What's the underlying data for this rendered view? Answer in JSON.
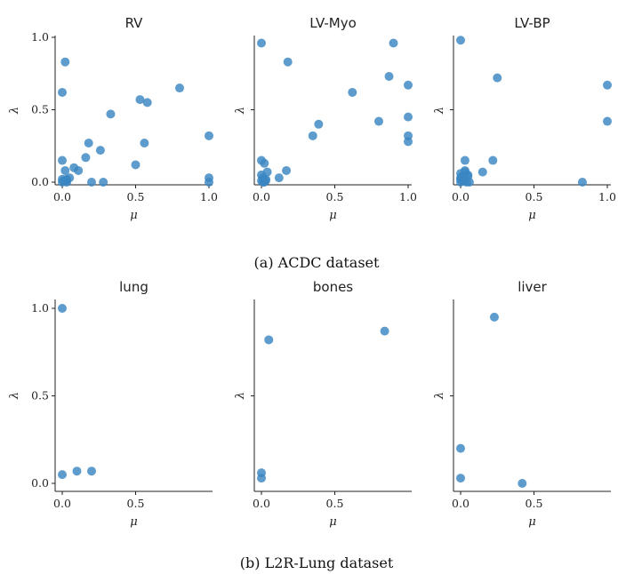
{
  "figure": {
    "captions": [
      "(a) ACDC dataset",
      "(b) L2R-Lung dataset"
    ]
  },
  "chart_data": [
    {
      "type": "scatter",
      "title": "RV",
      "xlabel": "μ",
      "ylabel": "λ",
      "xlim": [
        0,
        1
      ],
      "ylim": [
        0,
        1
      ],
      "xticks": [
        0,
        0.5,
        1
      ],
      "xtick_labels": [
        "0.0",
        "0.5",
        "1.0"
      ],
      "yticks": [
        0,
        0.5,
        1
      ],
      "ytick_labels": [
        "0.0",
        "0.5",
        "1.0"
      ],
      "grid": false,
      "x": [
        0.0,
        0.0,
        0.02,
        0.02,
        0.05,
        0.03,
        0.0,
        0.01,
        0.03,
        0.08,
        0.11,
        0.16,
        0.18,
        0.2,
        0.26,
        0.28,
        0.33,
        0.5,
        0.53,
        0.56,
        0.58,
        0.8,
        1.0,
        1.0,
        1.0,
        0.03,
        0.0
      ],
      "y": [
        0.62,
        0.15,
        0.83,
        0.08,
        0.03,
        0.0,
        0.02,
        0.01,
        0.02,
        0.1,
        0.08,
        0.17,
        0.27,
        0.0,
        0.22,
        0.0,
        0.47,
        0.12,
        0.57,
        0.27,
        0.55,
        0.65,
        0.32,
        0.03,
        0.0,
        0.01,
        0.0
      ]
    },
    {
      "type": "scatter",
      "title": "LV-Myo",
      "xlabel": "μ",
      "ylabel": "λ",
      "xlim": [
        0,
        1
      ],
      "ylim": [
        0,
        1
      ],
      "xticks": [
        0,
        0.5,
        1
      ],
      "xtick_labels": [
        "0.0",
        "0.5",
        "1.0"
      ],
      "yticks": [
        0.5
      ],
      "ytick_labels": [],
      "grid": false,
      "x": [
        0.0,
        0.18,
        0.9,
        0.0,
        0.02,
        0.04,
        0.0,
        0.01,
        0.03,
        0.02,
        0.0,
        0.12,
        0.17,
        0.35,
        0.39,
        0.62,
        0.8,
        0.87,
        1.0,
        1.0,
        1.0,
        1.0,
        0.01,
        0.03
      ],
      "y": [
        0.96,
        0.83,
        0.96,
        0.15,
        0.13,
        0.07,
        0.05,
        0.03,
        0.02,
        0.0,
        0.01,
        0.03,
        0.08,
        0.32,
        0.4,
        0.62,
        0.42,
        0.73,
        0.67,
        0.45,
        0.32,
        0.28,
        0.0,
        0.01
      ]
    },
    {
      "type": "scatter",
      "title": "LV-BP",
      "xlabel": "μ",
      "ylabel": "λ",
      "xlim": [
        0,
        1
      ],
      "ylim": [
        0,
        1
      ],
      "xticks": [
        0,
        0.5,
        1
      ],
      "xtick_labels": [
        "0.0",
        "0.5",
        "1.0"
      ],
      "yticks": [
        0.5
      ],
      "ytick_labels": [],
      "grid": false,
      "x": [
        0.0,
        0.25,
        1.0,
        1.0,
        0.83,
        0.03,
        0.03,
        0.0,
        0.01,
        0.02,
        0.05,
        0.0,
        0.02,
        0.04,
        0.01,
        0.0,
        0.06,
        0.03,
        0.15,
        0.22,
        0.02,
        0.05,
        0.0
      ],
      "y": [
        0.98,
        0.72,
        0.67,
        0.42,
        0.0,
        0.15,
        0.08,
        0.06,
        0.04,
        0.03,
        0.05,
        0.02,
        0.01,
        0.0,
        0.02,
        0.0,
        0.0,
        0.07,
        0.07,
        0.15,
        0.01,
        0.04,
        0.03
      ]
    },
    {
      "type": "scatter",
      "title": "lung",
      "xlabel": "μ",
      "ylabel": "λ",
      "xlim": [
        0,
        0.85
      ],
      "ylim": [
        0,
        1
      ],
      "xticks": [
        0,
        0.5
      ],
      "xtick_labels": [
        "0.0",
        "0.5"
      ],
      "yticks": [
        0,
        0.5,
        1
      ],
      "ytick_labels": [
        "0.0",
        "0.5",
        "1.0"
      ],
      "grid": false,
      "x": [
        0.0,
        0.0,
        0.1,
        0.2
      ],
      "y": [
        1.0,
        0.05,
        0.07,
        0.07
      ]
    },
    {
      "type": "scatter",
      "title": "bones",
      "xlabel": "μ",
      "ylabel": "λ",
      "xlim": [
        0,
        0.85
      ],
      "ylim": [
        0,
        1
      ],
      "xticks": [
        0,
        0.5
      ],
      "xtick_labels": [
        "0.0",
        "0.5"
      ],
      "yticks": [
        0.5
      ],
      "ytick_labels": [],
      "grid": false,
      "x": [
        0.05,
        0.84,
        0.0,
        0.0
      ],
      "y": [
        0.82,
        0.87,
        0.06,
        0.03
      ]
    },
    {
      "type": "scatter",
      "title": "liver",
      "xlabel": "μ",
      "ylabel": "λ",
      "xlim": [
        0,
        0.85
      ],
      "ylim": [
        0,
        1
      ],
      "xticks": [
        0,
        0.5
      ],
      "xtick_labels": [
        "0.0",
        "0.5"
      ],
      "yticks": [
        0.5
      ],
      "ytick_labels": [],
      "grid": false,
      "x": [
        0.23,
        0.0,
        0.0,
        0.42
      ],
      "y": [
        0.95,
        0.2,
        0.03,
        0.0
      ]
    }
  ]
}
